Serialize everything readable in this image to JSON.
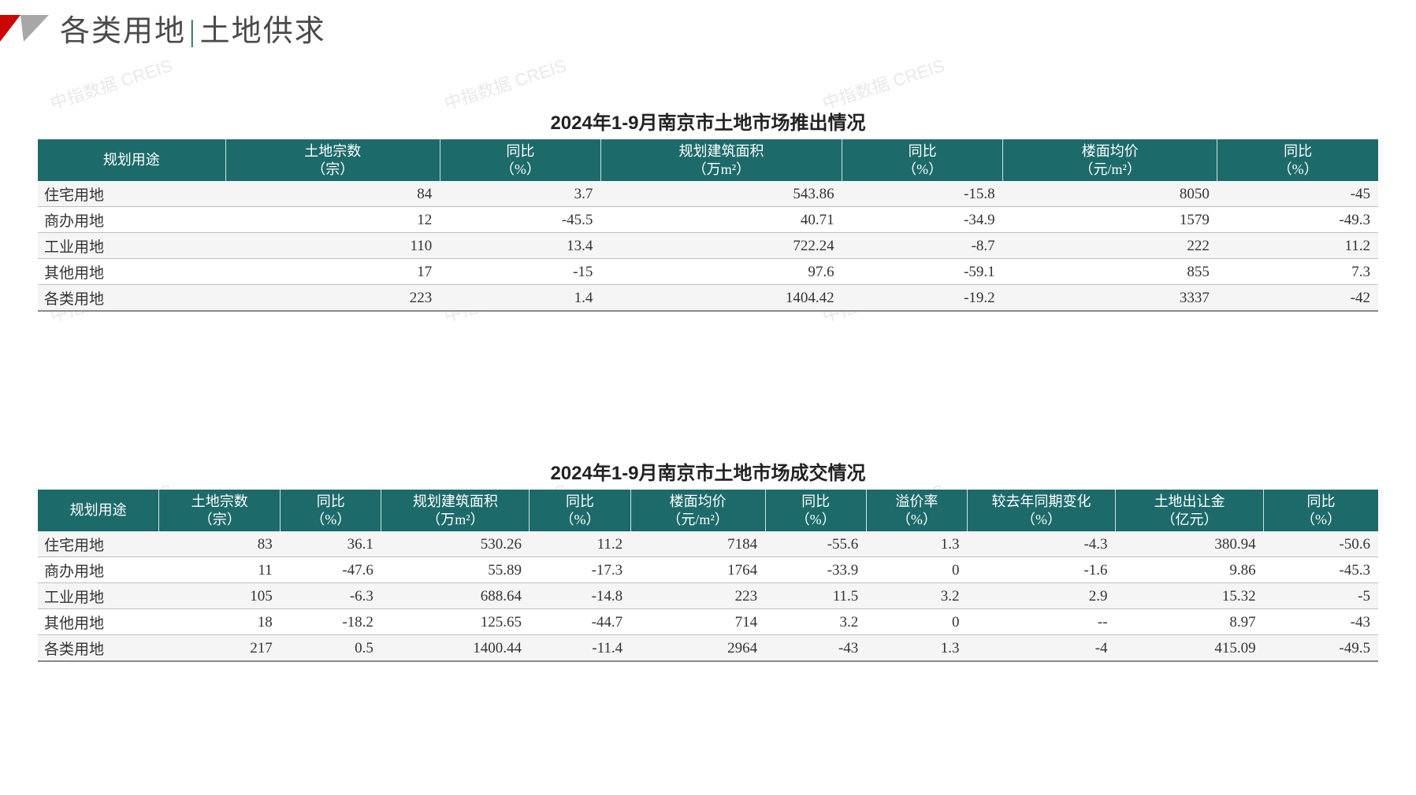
{
  "header": {
    "title_left": "各类用地",
    "title_right": "土地供求",
    "logo_colors": {
      "red": "#cc0605",
      "grey": "#a7a7a7"
    }
  },
  "watermark_text": "中指数据 CREIS",
  "theme": {
    "header_bg": "#1d6a6a",
    "header_fg": "#ffffff",
    "row_stripe": "#f5f5f5",
    "row_border": "#bfbfbf"
  },
  "table1": {
    "title": "2024年1-9月南京市土地市场推出情况",
    "columns": [
      {
        "l1": "规划用途",
        "l2": ""
      },
      {
        "l1": "土地宗数",
        "l2": "（宗）"
      },
      {
        "l1": "同比",
        "l2": "（%）"
      },
      {
        "l1": "规划建筑面积",
        "l2": "（万m²）"
      },
      {
        "l1": "同比",
        "l2": "（%）"
      },
      {
        "l1": "楼面均价",
        "l2": "（元/m²）"
      },
      {
        "l1": "同比",
        "l2": "（%）"
      }
    ],
    "col_widths": [
      "14%",
      "16%",
      "12%",
      "18%",
      "12%",
      "16%",
      "12%"
    ],
    "rows": [
      {
        "label": "住宅用地",
        "cells": [
          "84",
          "3.7",
          "543.86",
          "-15.8",
          "8050",
          "-45"
        ]
      },
      {
        "label": "商办用地",
        "cells": [
          "12",
          "-45.5",
          "40.71",
          "-34.9",
          "1579",
          "-49.3"
        ]
      },
      {
        "label": "工业用地",
        "cells": [
          "110",
          "13.4",
          "722.24",
          "-8.7",
          "222",
          "11.2"
        ]
      },
      {
        "label": "其他用地",
        "cells": [
          "17",
          "-15",
          "97.6",
          "-59.1",
          "855",
          "7.3"
        ]
      },
      {
        "label": "各类用地",
        "cells": [
          "223",
          "1.4",
          "1404.42",
          "-19.2",
          "3337",
          "-42"
        ]
      }
    ]
  },
  "table2": {
    "title": "2024年1-9月南京市土地市场成交情况",
    "columns": [
      {
        "l1": "规划用途",
        "l2": ""
      },
      {
        "l1": "土地宗数",
        "l2": "（宗）"
      },
      {
        "l1": "同比",
        "l2": "（%）"
      },
      {
        "l1": "规划建筑面积",
        "l2": "（万m²）"
      },
      {
        "l1": "同比",
        "l2": "（%）"
      },
      {
        "l1": "楼面均价",
        "l2": "（元/m²）"
      },
      {
        "l1": "同比",
        "l2": "（%）"
      },
      {
        "l1": "溢价率",
        "l2": "（%）"
      },
      {
        "l1": "较去年同期变化",
        "l2": "（%）"
      },
      {
        "l1": "土地出让金",
        "l2": "（亿元）"
      },
      {
        "l1": "同比",
        "l2": "（%）"
      }
    ],
    "col_widths": [
      "9%",
      "9%",
      "7.5%",
      "11%",
      "7.5%",
      "10%",
      "7.5%",
      "7.5%",
      "11%",
      "11%",
      "8.5%"
    ],
    "rows": [
      {
        "label": "住宅用地",
        "cells": [
          "83",
          "36.1",
          "530.26",
          "11.2",
          "7184",
          "-55.6",
          "1.3",
          "-4.3",
          "380.94",
          "-50.6"
        ]
      },
      {
        "label": "商办用地",
        "cells": [
          "11",
          "-47.6",
          "55.89",
          "-17.3",
          "1764",
          "-33.9",
          "0",
          "-1.6",
          "9.86",
          "-45.3"
        ]
      },
      {
        "label": "工业用地",
        "cells": [
          "105",
          "-6.3",
          "688.64",
          "-14.8",
          "223",
          "11.5",
          "3.2",
          "2.9",
          "15.32",
          "-5"
        ]
      },
      {
        "label": "其他用地",
        "cells": [
          "18",
          "-18.2",
          "125.65",
          "-44.7",
          "714",
          "3.2",
          "0",
          "--",
          "8.97",
          "-43"
        ]
      },
      {
        "label": "各类用地",
        "cells": [
          "217",
          "0.5",
          "1400.44",
          "-11.4",
          "2964",
          "-43",
          "1.3",
          "-4",
          "415.09",
          "-49.5"
        ]
      }
    ]
  }
}
